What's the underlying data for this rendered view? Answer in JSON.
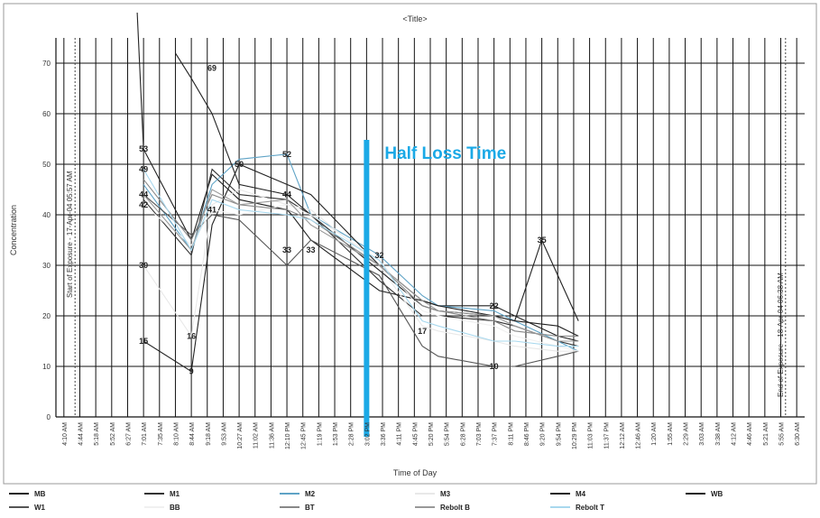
{
  "chart_data": {
    "type": "line",
    "title": "<Title>",
    "xlabel": "Time of Day",
    "ylabel": "Concentration",
    "ylim": [
      0,
      75
    ],
    "yticks": [
      0,
      10,
      20,
      30,
      40,
      50,
      60,
      70
    ],
    "grid": true,
    "x_tick_labels": [
      "4:10 AM",
      "4:44 AM",
      "5:18 AM",
      "5:52 AM",
      "6:27 AM",
      "7:01 AM",
      "7:35 AM",
      "8:10 AM",
      "8:44 AM",
      "9:18 AM",
      "9:53 AM",
      "10:27 AM",
      "11:02 AM",
      "11:36 AM",
      "12:10 PM",
      "12:45 PM",
      "1:19 PM",
      "1:53 PM",
      "2:28 PM",
      "3:02 PM",
      "3:36 PM",
      "4:11 PM",
      "4:45 PM",
      "5:20 PM",
      "5:54 PM",
      "6:28 PM",
      "7:03 PM",
      "7:37 PM",
      "8:11 PM",
      "8:46 PM",
      "9:20 PM",
      "9:54 PM",
      "10:29 PM",
      "11:03 PM",
      "11:37 PM",
      "12:12 AM",
      "12:46 AM",
      "1:20 AM",
      "1:55 AM",
      "2:29 AM",
      "3:03 AM",
      "3:38 AM",
      "4:12 AM",
      "4:46 AM",
      "5:21 AM",
      "5:55 AM",
      "6:30 AM"
    ],
    "start_marker": {
      "x": 1.2,
      "label": "Start of Exposure - 17-Apr-04 05:57 AM"
    },
    "end_marker": {
      "x": 45.8,
      "label": "End of Exposure - 18-Apr-04 06:38 AM"
    },
    "half_loss": {
      "x": 19.5,
      "label": "Half Loss Time",
      "color": "#1ba9e6"
    },
    "series": [
      {
        "name": "MB",
        "color": "#222222",
        "points": [
          [
            4.6,
            80
          ],
          [
            5,
            53
          ],
          [
            8,
            35
          ],
          [
            9.3,
            48
          ],
          [
            11,
            43
          ],
          [
            14,
            41
          ],
          [
            14.3,
            40
          ],
          [
            15.5,
            35
          ],
          [
            19.8,
            25
          ],
          [
            22.5,
            23
          ],
          [
            23.5,
            22
          ],
          [
            27,
            22
          ],
          [
            28.3,
            20
          ],
          [
            31,
            16
          ],
          [
            32.3,
            15
          ]
        ]
      },
      {
        "name": "M1",
        "color": "#333333",
        "points": [
          [
            5,
            43
          ],
          [
            8,
            32
          ],
          [
            9.3,
            49
          ],
          [
            11,
            44
          ],
          [
            14,
            43
          ],
          [
            15.5,
            40
          ],
          [
            19.8,
            27
          ],
          [
            22.5,
            20
          ],
          [
            23.5,
            20
          ],
          [
            27,
            19
          ],
          [
            28.3,
            18
          ],
          [
            31,
            15
          ],
          [
            32.3,
            14
          ]
        ]
      },
      {
        "name": "M2",
        "color": "#5fa3c6",
        "points": [
          [
            5,
            46
          ],
          [
            8,
            33
          ],
          [
            9.3,
            46
          ],
          [
            11,
            51
          ],
          [
            14,
            52
          ],
          [
            15.5,
            40
          ],
          [
            19.8,
            32
          ],
          [
            22.5,
            24
          ],
          [
            23.5,
            22
          ],
          [
            27,
            21
          ],
          [
            28.3,
            19
          ],
          [
            31,
            15
          ],
          [
            32.3,
            13
          ]
        ]
      },
      {
        "name": "M3",
        "color": "#e8e8e8",
        "points": [
          [
            5,
            30
          ],
          [
            8,
            16
          ],
          [
            9.3,
            42
          ],
          [
            11,
            45
          ],
          [
            14,
            42
          ],
          [
            15.5,
            41
          ],
          [
            19.8,
            30
          ],
          [
            22.5,
            18
          ],
          [
            23.5,
            17
          ],
          [
            27,
            15
          ],
          [
            28.3,
            14
          ],
          [
            31,
            13
          ],
          [
            32.3,
            13
          ]
        ]
      },
      {
        "name": "M4",
        "color": "#222222",
        "points": [
          [
            7,
            72
          ],
          [
            8,
            67
          ],
          [
            9.3,
            60
          ],
          [
            11,
            46
          ],
          [
            14,
            44
          ],
          [
            15.5,
            40
          ],
          [
            19.8,
            29
          ],
          [
            22.5,
            22
          ],
          [
            23.5,
            21
          ],
          [
            27,
            20
          ],
          [
            28.3,
            19
          ],
          [
            31,
            18
          ],
          [
            32.3,
            16
          ]
        ]
      },
      {
        "name": "WB",
        "color": "#222222",
        "points": [
          [
            5,
            15
          ],
          [
            8,
            9
          ],
          [
            9.3,
            38
          ],
          [
            11,
            50
          ],
          [
            14,
            46
          ],
          [
            15.5,
            44
          ],
          [
            19.8,
            30
          ],
          [
            22.5,
            23
          ],
          [
            23.5,
            22
          ],
          [
            27,
            20
          ],
          [
            28.3,
            19
          ],
          [
            30,
            35
          ],
          [
            32.3,
            19
          ]
        ]
      },
      {
        "name": "W1",
        "color": "#555555",
        "points": [
          [
            5,
            44
          ],
          [
            8,
            36
          ],
          [
            9.3,
            40
          ],
          [
            11,
            39
          ],
          [
            14,
            30
          ],
          [
            15.5,
            35
          ],
          [
            19.8,
            28
          ],
          [
            22.5,
            14
          ],
          [
            23.5,
            12
          ],
          [
            27,
            10
          ],
          [
            28.3,
            10
          ],
          [
            31,
            12
          ],
          [
            32.3,
            13
          ]
        ]
      },
      {
        "name": "BB",
        "color": "#f0f0f0",
        "points": [
          [
            5,
            42
          ],
          [
            8,
            34
          ],
          [
            9.3,
            41
          ],
          [
            11,
            40
          ],
          [
            14,
            42
          ],
          [
            15.5,
            40
          ],
          [
            19.8,
            31
          ],
          [
            22.5,
            21
          ],
          [
            23.5,
            20
          ],
          [
            27,
            18
          ],
          [
            28.3,
            16
          ],
          [
            31,
            14
          ],
          [
            32.3,
            13
          ]
        ]
      },
      {
        "name": "BT",
        "color": "#888888",
        "points": [
          [
            5,
            47
          ],
          [
            8,
            35
          ],
          [
            9.3,
            44
          ],
          [
            11,
            42
          ],
          [
            14,
            41
          ],
          [
            15.5,
            39
          ],
          [
            19.8,
            30
          ],
          [
            22.5,
            22
          ],
          [
            23.5,
            21
          ],
          [
            27,
            19
          ],
          [
            28.3,
            17
          ],
          [
            31,
            16
          ],
          [
            32.3,
            16
          ]
        ]
      },
      {
        "name": "Rebolt B",
        "color": "#999999",
        "points": [
          [
            5,
            44
          ],
          [
            8,
            33
          ],
          [
            9.3,
            45
          ],
          [
            11,
            42
          ],
          [
            14,
            43
          ],
          [
            15.5,
            38
          ],
          [
            19.8,
            30
          ],
          [
            22.5,
            23
          ],
          [
            23.5,
            21
          ],
          [
            27,
            20
          ],
          [
            28.3,
            18
          ],
          [
            31,
            15
          ],
          [
            32.3,
            15
          ]
        ]
      },
      {
        "name": "Rebolt T",
        "color": "#a8d8ee",
        "points": [
          [
            5,
            49
          ],
          [
            8,
            33
          ],
          [
            9.3,
            43
          ],
          [
            11,
            41
          ],
          [
            14,
            40
          ],
          [
            15.5,
            39
          ],
          [
            19.8,
            31
          ],
          [
            22.5,
            19
          ],
          [
            23.5,
            18
          ],
          [
            27,
            15
          ],
          [
            28.3,
            15
          ],
          [
            31,
            14
          ],
          [
            32.3,
            14
          ]
        ]
      }
    ],
    "data_labels": [
      {
        "x": 5,
        "y": 53,
        "text": "53"
      },
      {
        "x": 5,
        "y": 49,
        "text": "49"
      },
      {
        "x": 5,
        "y": 44,
        "text": "44"
      },
      {
        "x": 5,
        "y": 42,
        "text": "42"
      },
      {
        "x": 5,
        "y": 30,
        "text": "30"
      },
      {
        "x": 5,
        "y": 15,
        "text": "15"
      },
      {
        "x": 9.3,
        "y": 69,
        "text": "69"
      },
      {
        "x": 9.3,
        "y": 41,
        "text": "41"
      },
      {
        "x": 8,
        "y": 16,
        "text": "16"
      },
      {
        "x": 8,
        "y": 9,
        "text": "9"
      },
      {
        "x": 11,
        "y": 50,
        "text": "50"
      },
      {
        "x": 14,
        "y": 52,
        "text": "52"
      },
      {
        "x": 14,
        "y": 44,
        "text": "44"
      },
      {
        "x": 14,
        "y": 33,
        "text": "33"
      },
      {
        "x": 15.5,
        "y": 33,
        "text": "33"
      },
      {
        "x": 19.8,
        "y": 32,
        "text": "32"
      },
      {
        "x": 22.5,
        "y": 17,
        "text": "17"
      },
      {
        "x": 27,
        "y": 22,
        "text": "22"
      },
      {
        "x": 27,
        "y": 10,
        "text": "10"
      },
      {
        "x": 30,
        "y": 35,
        "text": "35"
      }
    ],
    "legend_position": "bottom"
  }
}
